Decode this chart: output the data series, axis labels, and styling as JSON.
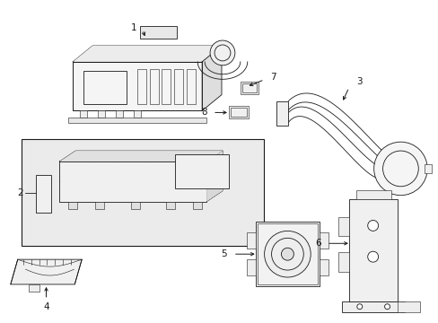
{
  "bg_color": "#ffffff",
  "lc": "#1a1a1a",
  "lw": 0.6,
  "figsize": [
    4.89,
    3.6
  ],
  "dpi": 100,
  "label_fs": 7.5
}
